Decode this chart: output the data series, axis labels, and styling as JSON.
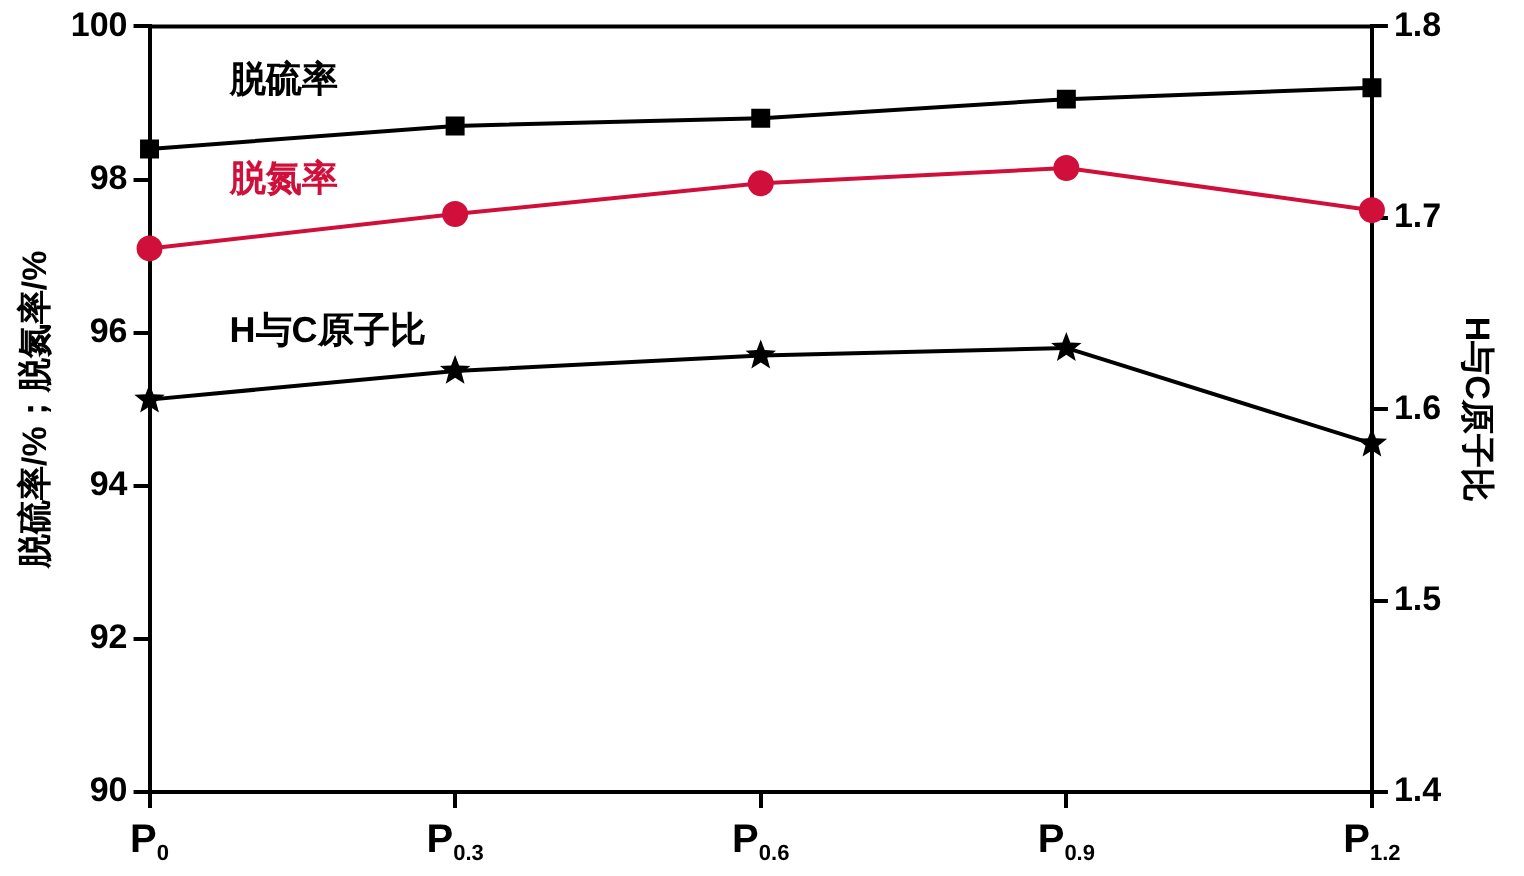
{
  "chart_data": {
    "type": "line",
    "ylabel": "脱硫率/%；脱氮率/%",
    "y2label": "H与C原子比",
    "categories": [
      "P$_{0}$",
      "P$_{0.3}$",
      "P$_{0.6}$",
      "P$_{0.9}$",
      "P$_{1.2}$"
    ],
    "series": [
      {
        "name": "脱硫率",
        "color": "#000000",
        "marker": "square",
        "values": [
          98.4,
          98.7,
          98.8,
          99.05,
          99.2
        ]
      },
      {
        "name": "脱氮率",
        "color": "#d0103a",
        "marker": "circle",
        "values": [
          97.1,
          97.55,
          97.95,
          98.15,
          97.6
        ]
      },
      {
        "name": "H与C原子比",
        "color": "#000000",
        "marker": "star",
        "axis": "y2",
        "values": [
          1.605,
          1.62,
          1.628,
          1.632,
          1.582
        ]
      }
    ],
    "ylim": [
      90,
      100
    ],
    "yticks": [
      90,
      92,
      94,
      96,
      98,
      100
    ],
    "y2lim": [
      1.4,
      1.8
    ],
    "y2ticks": [
      1.4,
      1.5,
      1.6,
      1.7,
      1.8
    ],
    "grid": false,
    "legend": false,
    "line_style": "solid"
  }
}
